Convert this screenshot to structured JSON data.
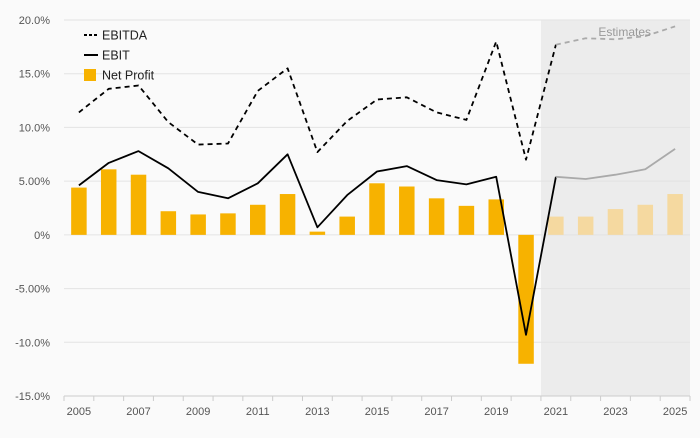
{
  "chart_data": {
    "type": "bar+line",
    "annotation": "Estimates",
    "estimates_from": 2021,
    "x": [
      2005,
      2006,
      2007,
      2008,
      2009,
      2010,
      2011,
      2012,
      2013,
      2014,
      2015,
      2016,
      2017,
      2018,
      2019,
      2020,
      2021,
      2022,
      2023,
      2024,
      2025
    ],
    "x_tick_labels": [
      "2005",
      "2007",
      "2009",
      "2011",
      "2013",
      "2015",
      "2017",
      "2019",
      "2021",
      "2023",
      "2025"
    ],
    "y_tick_labels": [
      "-15.0%",
      "-10.0%",
      "-5.00%",
      "0%",
      "5.00%",
      "10.0%",
      "15.0%",
      "20.0%"
    ],
    "y_ticks": [
      -15,
      -10,
      -5,
      0,
      5,
      10,
      15,
      20
    ],
    "ylim": [
      -15,
      20
    ],
    "grid": true,
    "legend_position": "top-left",
    "series": [
      {
        "name": "EBITDA",
        "type": "line",
        "style": "dashed",
        "color": "#000000",
        "estimate_color": "#aaaaaa",
        "values": [
          11.4,
          13.6,
          13.9,
          10.5,
          8.4,
          8.5,
          13.4,
          15.5,
          7.7,
          10.6,
          12.6,
          12.8,
          11.4,
          10.7,
          18.0,
          7.0,
          17.7,
          18.3,
          18.2,
          18.5,
          19.4
        ]
      },
      {
        "name": "EBIT",
        "type": "line",
        "style": "solid",
        "color": "#000000",
        "estimate_color": "#aaaaaa",
        "values": [
          4.6,
          6.7,
          7.8,
          6.2,
          4.0,
          3.4,
          4.8,
          7.5,
          0.7,
          3.7,
          5.9,
          6.4,
          5.1,
          4.7,
          5.4,
          -9.3,
          5.4,
          5.2,
          5.6,
          6.1,
          8.0
        ]
      },
      {
        "name": "Net Profit",
        "type": "bar",
        "color": "#f7b200",
        "estimate_color": "#f5d9a0",
        "values": [
          4.4,
          6.1,
          5.6,
          2.2,
          1.9,
          2.0,
          2.8,
          3.8,
          0.3,
          1.7,
          4.8,
          4.5,
          3.4,
          2.7,
          3.3,
          -12.0,
          1.7,
          1.7,
          2.4,
          2.8,
          3.8
        ]
      }
    ]
  }
}
